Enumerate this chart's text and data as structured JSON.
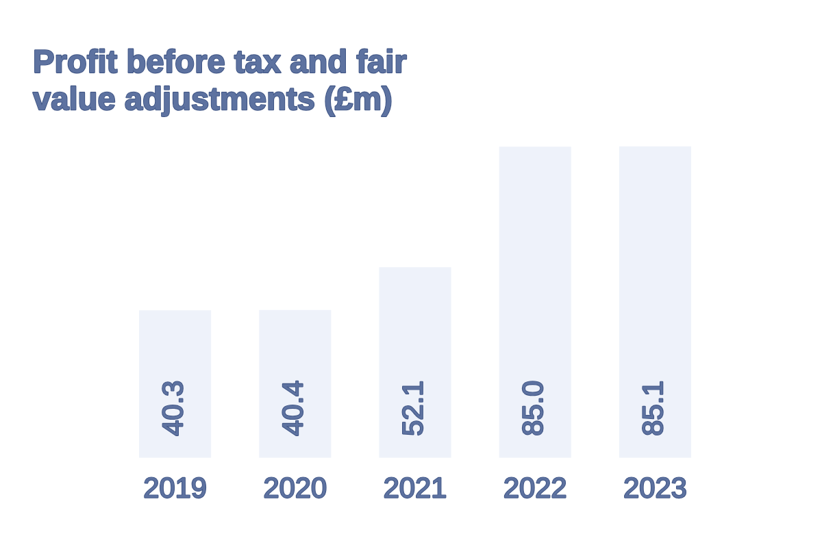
{
  "chart_data": {
    "type": "bar",
    "title": "Profit before tax and fair\nvalue adjustments (£m)",
    "categories": [
      "2019",
      "2020",
      "2021",
      "2022",
      "2023"
    ],
    "values": [
      40.3,
      40.4,
      52.1,
      85.0,
      85.1
    ],
    "value_labels": [
      "40.3",
      "40.4",
      "52.1",
      "85.0",
      "85.1"
    ],
    "color": "#eef2fa",
    "grid": false,
    "tick_labels": "x"
  }
}
